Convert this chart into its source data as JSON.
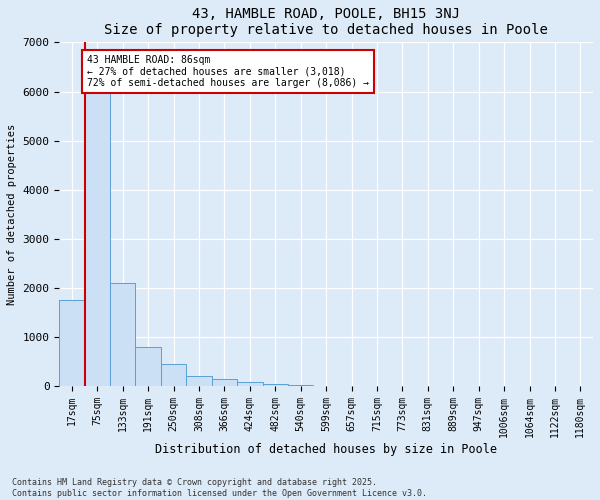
{
  "title1": "43, HAMBLE ROAD, POOLE, BH15 3NJ",
  "title2": "Size of property relative to detached houses in Poole",
  "xlabel": "Distribution of detached houses by size in Poole",
  "ylabel": "Number of detached properties",
  "categories": [
    "17sqm",
    "75sqm",
    "133sqm",
    "191sqm",
    "250sqm",
    "308sqm",
    "366sqm",
    "424sqm",
    "482sqm",
    "540sqm",
    "599sqm",
    "657sqm",
    "715sqm",
    "773sqm",
    "831sqm",
    "889sqm",
    "947sqm",
    "1006sqm",
    "1064sqm",
    "1122sqm",
    "1180sqm"
  ],
  "values": [
    1750,
    6100,
    2100,
    800,
    450,
    200,
    150,
    80,
    50,
    30,
    10,
    5,
    2,
    1,
    0,
    0,
    0,
    0,
    0,
    0,
    0
  ],
  "bar_color": "#cce0f5",
  "bar_edge_color": "#5a9fd4",
  "vline_x": 0.5,
  "vline_color": "#cc0000",
  "annotation_text": "43 HAMBLE ROAD: 86sqm\n← 27% of detached houses are smaller (3,018)\n72% of semi-detached houses are larger (8,086) →",
  "annotation_box_color": "#ffffff",
  "annotation_box_edge": "#cc0000",
  "ylim": [
    0,
    7000
  ],
  "yticks": [
    0,
    1000,
    2000,
    3000,
    4000,
    5000,
    6000,
    7000
  ],
  "footer_line1": "Contains HM Land Registry data © Crown copyright and database right 2025.",
  "footer_line2": "Contains public sector information licensed under the Open Government Licence v3.0.",
  "bg_color": "#ddeaf7",
  "plot_bg_color": "#ddeaf7",
  "figwidth": 6.0,
  "figheight": 5.0,
  "dpi": 100
}
